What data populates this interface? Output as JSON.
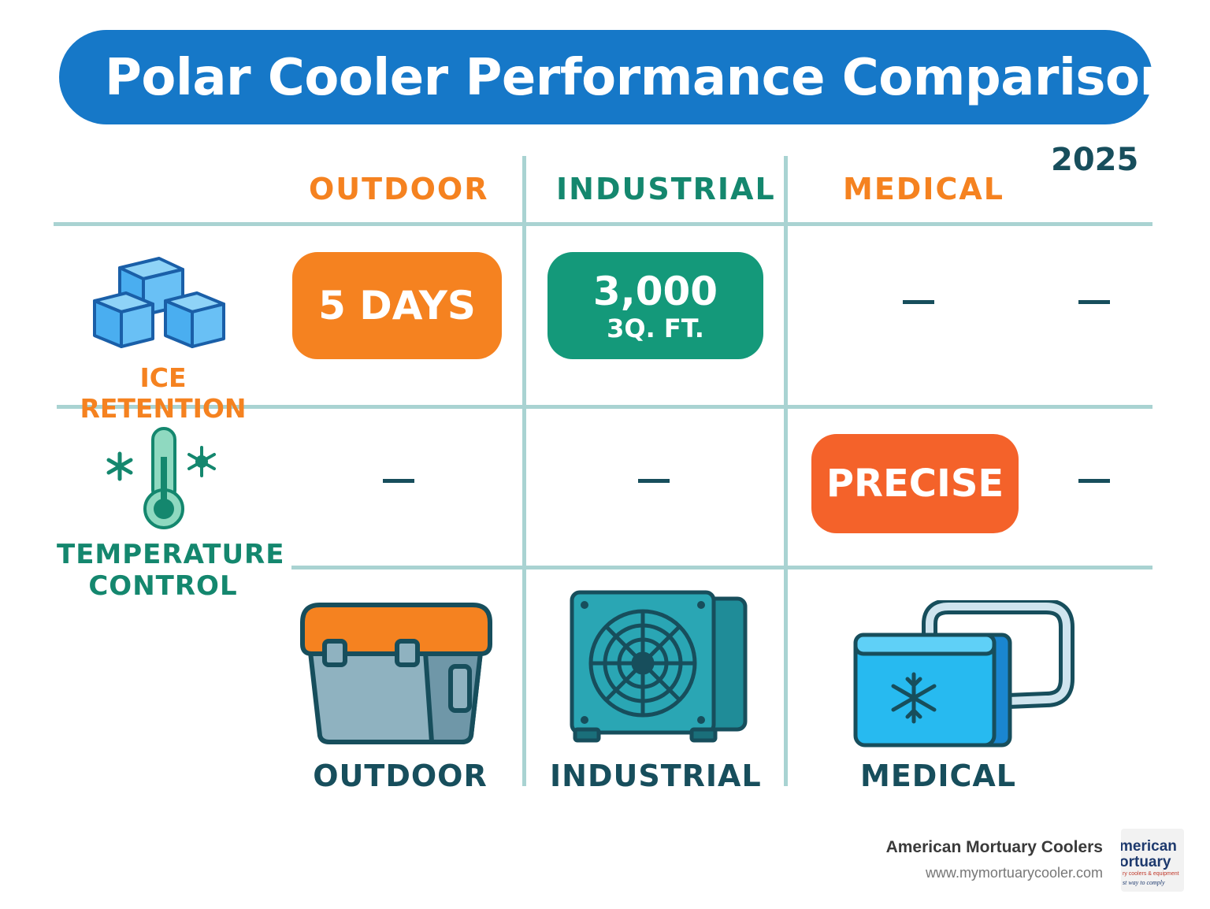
{
  "title": "Polar Cooler Performance Comparison",
  "year": "2025",
  "columns": [
    "OUTDOOR",
    "INDUSTRIAL",
    "MEDICAL"
  ],
  "rows": [
    {
      "label": "ICE RETENTION",
      "icon": "ice-cubes-icon",
      "color": "#f58220"
    },
    {
      "label_line1": "TEMPERATURE",
      "label_line2": "CONTROL",
      "icon": "thermometer-icon",
      "color": "#14876e"
    }
  ],
  "cells": {
    "ice_outdoor": "5 DAYS",
    "ice_industrial_line1": "3,000",
    "ice_industrial_line2": "3Q. FT.",
    "ice_medical": "–",
    "ice_extra": "–",
    "temp_outdoor": "–",
    "temp_industrial": "–",
    "temp_medical": "PRECISE",
    "temp_extra": "–"
  },
  "products": [
    {
      "label": "OUTDOOR",
      "icon": "outdoor-cooler-icon"
    },
    {
      "label": "INDUSTRIAL",
      "icon": "industrial-cooling-unit-icon"
    },
    {
      "label": "MEDICAL",
      "icon": "medical-cooler-icon"
    }
  ],
  "brand": {
    "name": "American Mortuary Coolers",
    "url": "www.mymortuarycooler.com",
    "logo_line1": "merican",
    "logo_line2": "ortuary",
    "logo_line3": "ry coolers & equipment",
    "logo_line4": "st way to comply"
  },
  "colors": {
    "banner": "#1678c8",
    "orange": "#f58220",
    "green": "#14997a",
    "red_orange": "#f4622a",
    "teal_text": "#174e5c",
    "grid": "#a9d3d2"
  }
}
